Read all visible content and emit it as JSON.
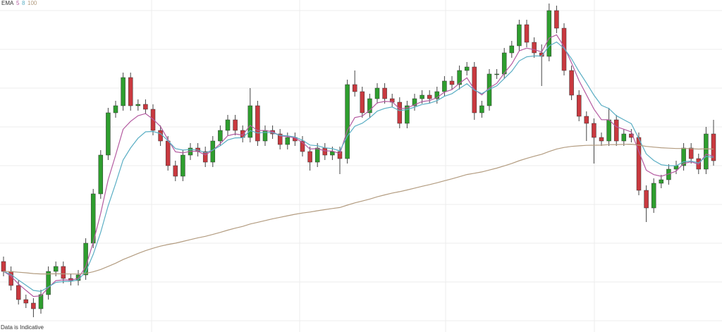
{
  "chart_data": {
    "type": "candlestick",
    "indicator": {
      "name": "EMA",
      "periods": [
        5,
        8,
        100
      ],
      "colors": [
        "#b45aa0",
        "#5aaec4",
        "#b39c80"
      ]
    },
    "footnote": "Data is Indicative",
    "up_color": "#2e9e2e",
    "down_color": "#c9393f",
    "grid": true,
    "ylim": [
      0,
      471
    ],
    "open": [
      100,
      86,
      66,
      46,
      41,
      33,
      53,
      86,
      93,
      76,
      73,
      81,
      126,
      196,
      251,
      311,
      321,
      361,
      321,
      323,
      316,
      286,
      271,
      236,
      221,
      251,
      261,
      256,
      241,
      271,
      286,
      301,
      286,
      276,
      321,
      271,
      286,
      281,
      266,
      276,
      271,
      256,
      241,
      261,
      251,
      256,
      246,
      351,
      341,
      311,
      331,
      346,
      331,
      326,
      296,
      321,
      331,
      336,
      331,
      341,
      356,
      351,
      371,
      376,
      311,
      321,
      366,
      366,
      396,
      406,
      436,
      411,
      396,
      391,
      456,
      431,
      371,
      336,
      306,
      296,
      276,
      271,
      301,
      271,
      281,
      276,
      201,
      176,
      211,
      216,
      231,
      236,
      261,
      246,
      231,
      281
    ],
    "high": [
      107,
      93,
      73,
      53,
      48,
      60,
      93,
      100,
      100,
      83,
      88,
      133,
      203,
      258,
      318,
      328,
      368,
      368,
      330,
      330,
      323,
      293,
      278,
      243,
      258,
      268,
      268,
      263,
      278,
      293,
      308,
      308,
      293,
      346,
      328,
      293,
      293,
      288,
      283,
      283,
      278,
      263,
      268,
      268,
      263,
      263,
      358,
      371,
      348,
      338,
      353,
      353,
      338,
      333,
      328,
      338,
      343,
      343,
      348,
      363,
      363,
      378,
      383,
      383,
      328,
      373,
      373,
      403,
      413,
      443,
      443,
      418,
      408,
      466,
      463,
      438,
      378,
      343,
      313,
      303,
      283,
      318,
      308,
      288,
      288,
      283,
      208,
      218,
      223,
      238,
      243,
      268,
      268,
      253,
      291,
      301
    ],
    "low": [
      79,
      59,
      39,
      34,
      21,
      26,
      46,
      79,
      69,
      66,
      66,
      74,
      119,
      189,
      244,
      304,
      314,
      314,
      314,
      309,
      279,
      264,
      229,
      214,
      214,
      244,
      249,
      234,
      234,
      264,
      279,
      279,
      269,
      269,
      264,
      264,
      274,
      259,
      259,
      264,
      249,
      229,
      234,
      244,
      244,
      224,
      239,
      334,
      304,
      304,
      324,
      324,
      319,
      289,
      289,
      314,
      324,
      324,
      324,
      334,
      344,
      344,
      364,
      301,
      304,
      314,
      359,
      359,
      389,
      399,
      404,
      389,
      349,
      384,
      424,
      364,
      329,
      299,
      271,
      239,
      264,
      264,
      264,
      264,
      269,
      194,
      156,
      169,
      204,
      209,
      224,
      229,
      239,
      224,
      224,
      236
    ],
    "close": [
      86,
      66,
      46,
      41,
      33,
      53,
      86,
      93,
      76,
      73,
      81,
      126,
      196,
      251,
      311,
      321,
      361,
      321,
      323,
      316,
      286,
      271,
      236,
      221,
      251,
      261,
      256,
      241,
      271,
      286,
      301,
      286,
      276,
      321,
      271,
      286,
      281,
      266,
      276,
      271,
      256,
      241,
      261,
      251,
      256,
      246,
      351,
      341,
      311,
      331,
      346,
      331,
      326,
      296,
      321,
      331,
      336,
      331,
      341,
      356,
      351,
      371,
      376,
      311,
      321,
      366,
      366,
      396,
      406,
      436,
      411,
      396,
      391,
      456,
      431,
      371,
      336,
      306,
      296,
      276,
      271,
      301,
      271,
      281,
      276,
      201,
      176,
      211,
      216,
      231,
      236,
      261,
      246,
      231,
      281,
      243
    ]
  }
}
